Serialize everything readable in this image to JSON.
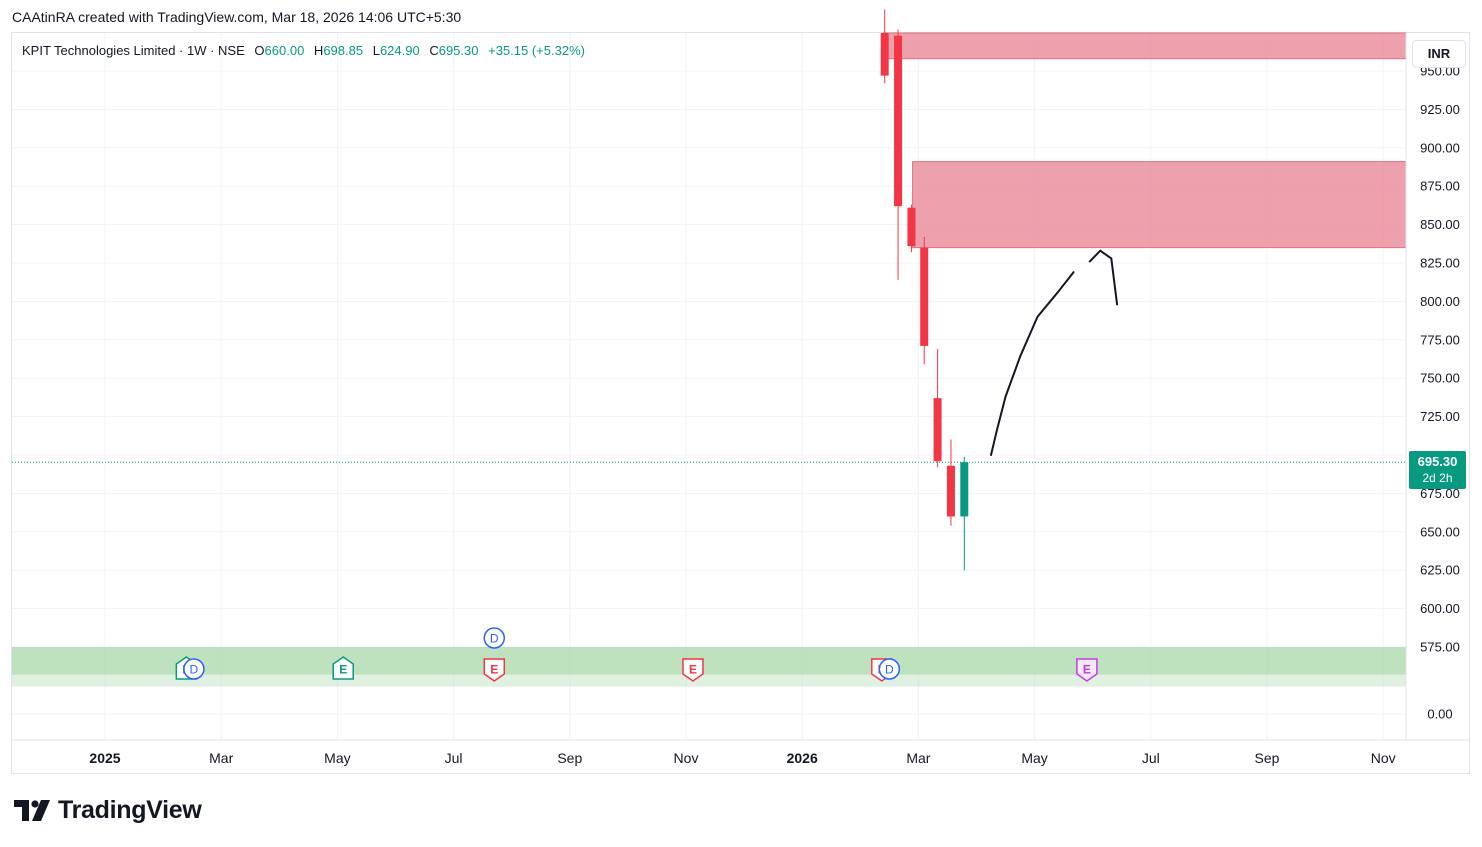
{
  "header": {
    "text": "CAAtinRA created with TradingView.com, Mar 18, 2026 14:06 UTC+5:30"
  },
  "legend": {
    "name": "KPIT Technologies Limited · 1W · NSE",
    "open_label": "O",
    "open": "660.00",
    "high_label": "H",
    "high": "698.85",
    "low_label": "L",
    "low": "624.90",
    "close_label": "C",
    "close": "695.30",
    "change": "+35.15 (+5.32%)"
  },
  "currency": "INR",
  "price_tag": {
    "price": "695.30",
    "countdown": "2d 2h"
  },
  "brand": {
    "name": "TradingView"
  },
  "colors": {
    "up": "#089981",
    "down": "#f23645",
    "supply_zone": "#e9919e",
    "demand_zone": "#a8d8a8",
    "grid": "#f0f3fa"
  },
  "chart_data": {
    "type": "candlestick",
    "symbol": "KPIT Technologies Limited",
    "interval": "1W",
    "exchange": "NSE",
    "ylim": [
      0,
      960
    ],
    "y_ticks": [
      "0.00",
      "575.00",
      "600.00",
      "625.00",
      "650.00",
      "675.00",
      "700.00",
      "725.00",
      "750.00",
      "775.00",
      "800.00",
      "825.00",
      "850.00",
      "875.00",
      "900.00",
      "925.00",
      "950.00"
    ],
    "x_ticks": [
      {
        "label": "2025",
        "month": 0,
        "bold": true
      },
      {
        "label": "Mar",
        "month": 2
      },
      {
        "label": "May",
        "month": 4
      },
      {
        "label": "Jul",
        "month": 6
      },
      {
        "label": "Sep",
        "month": 8
      },
      {
        "label": "Nov",
        "month": 10
      },
      {
        "label": "2026",
        "month": 12,
        "bold": true
      },
      {
        "label": "Mar",
        "month": 14
      },
      {
        "label": "May",
        "month": 16
      },
      {
        "label": "Jul",
        "month": 18
      },
      {
        "label": "Sep",
        "month": 20
      },
      {
        "label": "Nov",
        "month": 22
      }
    ],
    "candles": [
      {
        "month": 13.42,
        "open": 975,
        "high": 990,
        "low": 942,
        "close": 947
      },
      {
        "month": 13.65,
        "open": 973,
        "high": 977,
        "low": 814,
        "close": 862
      },
      {
        "month": 13.88,
        "open": 861,
        "high": 863,
        "low": 832,
        "close": 836
      },
      {
        "month": 14.1,
        "open": 835,
        "high": 842,
        "low": 759,
        "close": 771
      },
      {
        "month": 14.33,
        "open": 737,
        "high": 769,
        "low": 692,
        "close": 696
      },
      {
        "month": 14.56,
        "open": 693,
        "high": 710,
        "low": 654,
        "close": 660
      },
      {
        "month": 14.79,
        "open": 660,
        "high": 698.85,
        "low": 624.9,
        "close": 695.3
      }
    ],
    "zones": [
      {
        "kind": "supply",
        "from_month": 13.4,
        "price_low": 958,
        "price_high": 975
      },
      {
        "kind": "supply",
        "from_month": 13.9,
        "price_low": 835,
        "price_high": 891
      },
      {
        "kind": "demand",
        "from_month": -1,
        "price_low": 557,
        "price_high": 575
      }
    ],
    "last_price": 695.3,
    "events": [
      {
        "type": "earnings",
        "label": "E",
        "month": 1.4,
        "status": "reported-positive"
      },
      {
        "type": "dividend",
        "label": "D",
        "month": 1.53,
        "status": "paid"
      },
      {
        "type": "earnings",
        "label": "E",
        "month": 4.1,
        "status": "reported-positive"
      },
      {
        "type": "dividend",
        "label": "D",
        "month": 6.7,
        "status": "paid-upper"
      },
      {
        "type": "earnings",
        "label": "E",
        "month": 6.7,
        "status": "reported-negative"
      },
      {
        "type": "earnings",
        "label": "E",
        "month": 10.12,
        "status": "reported-negative"
      },
      {
        "type": "earnings",
        "label": "E",
        "month": 13.37,
        "status": "reported-negative"
      },
      {
        "type": "dividend",
        "label": "D",
        "month": 13.5,
        "status": "paid"
      },
      {
        "type": "earnings",
        "label": "E",
        "month": 16.9,
        "status": "upcoming"
      }
    ],
    "drawing": {
      "path_a": [
        [
          15.25,
          700
        ],
        [
          15.35,
          716
        ],
        [
          15.5,
          738
        ],
        [
          15.75,
          764
        ],
        [
          16.05,
          790
        ],
        [
          16.4,
          806
        ],
        [
          16.67,
          819
        ]
      ],
      "path_b": [
        [
          16.95,
          826
        ],
        [
          17.13,
          833
        ],
        [
          17.32,
          828
        ],
        [
          17.42,
          798
        ]
      ]
    }
  }
}
